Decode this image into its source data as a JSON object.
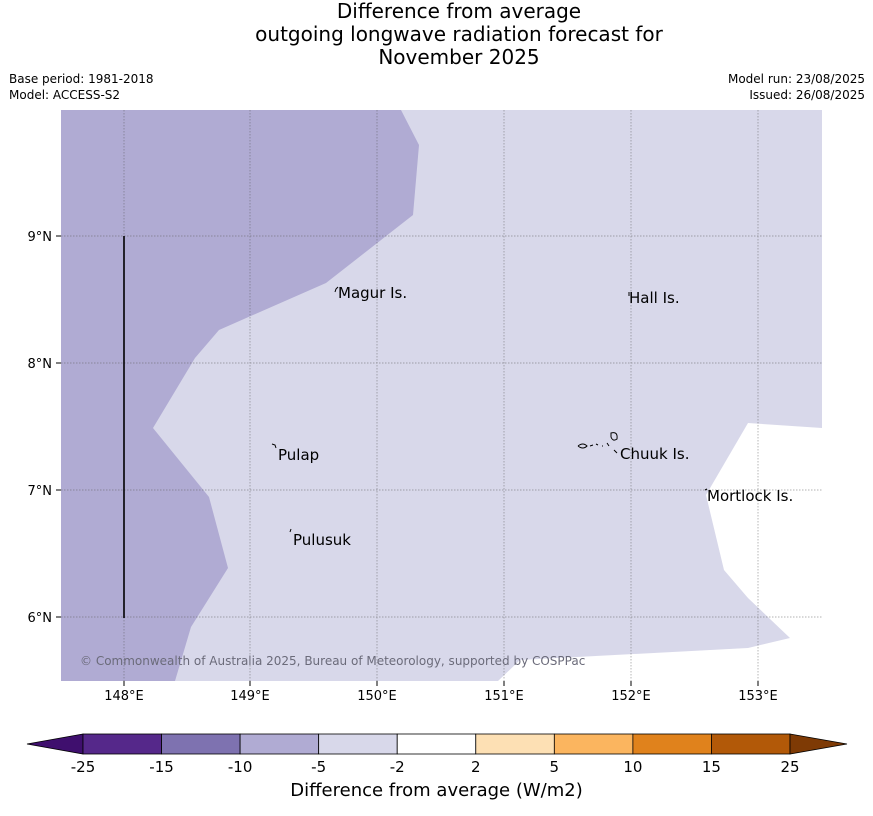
{
  "title": {
    "line1": "Difference from average",
    "line2": "outgoing longwave radiation forecast for",
    "line3": "November 2025"
  },
  "meta": {
    "base_period": "Base period: 1981-2018",
    "model": "Model: ACCESS-S2",
    "model_run": "Model run: 23/08/2025",
    "issued": "Issued: 26/08/2025"
  },
  "map": {
    "lon_ticks": [
      "148°E",
      "149°E",
      "150°E",
      "151°E",
      "152°E",
      "153°E"
    ],
    "lat_ticks": [
      "9°N",
      "8°N",
      "7°N",
      "6°N"
    ],
    "places": {
      "magur": "Magur Is.",
      "hall": "Hall Is.",
      "pulap": "Pulap",
      "chuuk": "Chuuk Is.",
      "mortlock": "Mortlock Is.",
      "pulusuk": "Pulusuk"
    },
    "copyright": "© Commonwealth of Australia 2025, Bureau of Meteorology, supported by COSPPac",
    "colors": {
      "band_-10_-5": "#b0abd3",
      "band_-5_-2": "#d8d8ea",
      "band_-2_2": "#ffffff"
    }
  },
  "colorbar": {
    "label": "Difference from average (W/m2)",
    "ticks": [
      "-25",
      "-15",
      "-10",
      "-5",
      "-2",
      "2",
      "5",
      "10",
      "15",
      "25"
    ],
    "colors": [
      "#3f0f6e",
      "#55288a",
      "#7e72b0",
      "#b0abd3",
      "#d8d8ea",
      "#ffffff",
      "#fde0b4",
      "#fbb55f",
      "#e0821c",
      "#b25908",
      "#7e3a05"
    ]
  }
}
